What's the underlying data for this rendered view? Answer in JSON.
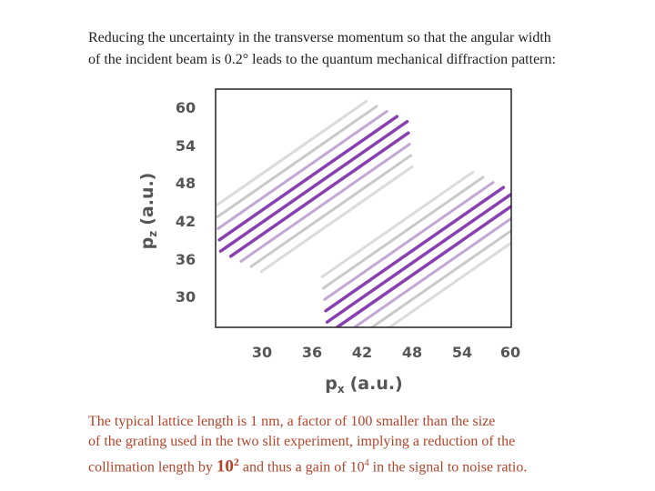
{
  "intro": {
    "lines": [
      "Reducing the uncertainty in the transverse momentum so that the angular width",
      "of the incident beam is 0.2° leads to the quantum mechanical diffraction pattern:"
    ]
  },
  "figure": {
    "y_label": {
      "symbol": "p",
      "subscript": "z",
      "unit": "(a.u.)"
    },
    "x_label": {
      "symbol": "p",
      "subscript": "x",
      "unit": "(a.u.)"
    },
    "y_ticks": [
      60,
      54,
      48,
      42,
      36,
      30
    ],
    "x_ticks": [
      30,
      36,
      42,
      48,
      54,
      60
    ]
  },
  "conclusion": {
    "lines": [
      [
        "The typical lattice length is 1 nm, a factor of 100 smaller than the size"
      ],
      [
        "of the grating used in the two slit experiment, implying a reduction of the"
      ],
      [
        "collimation length by ",
        "10",
        "2",
        " and thus a gain of ",
        "10",
        "4",
        " in the signal to noise ratio."
      ]
    ]
  }
}
